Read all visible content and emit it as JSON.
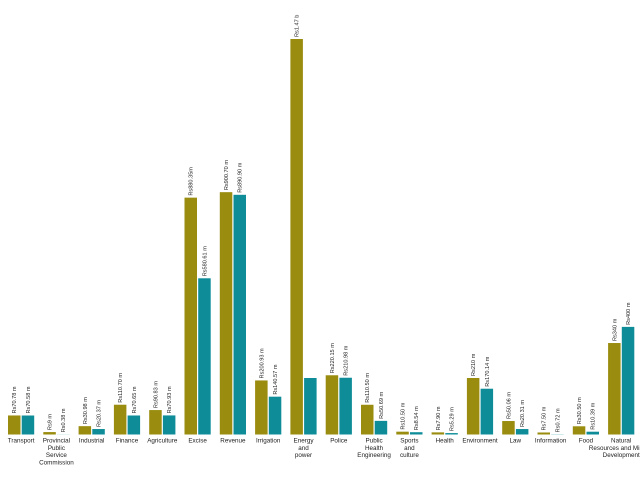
{
  "chart_data": {
    "type": "bar",
    "title": "",
    "xlabel": "",
    "ylabel": "",
    "ylim": [
      0,
      1470
    ],
    "grid": false,
    "legend": "none",
    "colors": {
      "series_a": "#9a8c0e",
      "series_b": "#0e8d99"
    },
    "categories": [
      [
        "Transport"
      ],
      [
        "Provincial",
        "Public",
        "Service",
        "Commission"
      ],
      [
        "Industrial"
      ],
      [
        "Finance"
      ],
      [
        "Agriculture"
      ],
      [
        "Excise"
      ],
      [
        "Revenue"
      ],
      [
        "Irrigation"
      ],
      [
        "Energy",
        "and",
        "power"
      ],
      [
        "Police"
      ],
      [
        "Public",
        "Health",
        "Engineering"
      ],
      [
        "Sports",
        "and",
        "culture"
      ],
      [
        "Health"
      ],
      [
        "Environment"
      ],
      [
        "Law"
      ],
      [
        "Information"
      ],
      [
        "Food"
      ],
      [
        "Natural",
        "Resources and Mineral",
        "Development"
      ]
    ],
    "series": [
      {
        "values": [
          70.78,
          9,
          30.98,
          110.7,
          90.83,
          880.35,
          900.7,
          200.93,
          1470,
          220.15,
          110.5,
          10.5,
          7.9,
          210,
          50.06,
          7.5,
          30.5,
          340
        ],
        "labels": [
          "Rs70.78 m",
          "Rs9 m",
          "Rs30.98 m",
          "Rs110.70 m",
          "Rs90.83 m",
          "Rs880.35m",
          "Rs900.70 m",
          "Rs200.93 m",
          "Rs1.47 b",
          "Rs220.15 m",
          "Rs110.50 m",
          "Rs10.50 m",
          "Rs7.90 m",
          "Rs210 m",
          "Rs50.06 m",
          "Rs7.50 m",
          "Rs30.50 m",
          "Rs340 m"
        ]
      },
      {
        "values": [
          70.58,
          0.38,
          20.37,
          70.65,
          70.93,
          580.61,
          890.9,
          140.57,
          210,
          210.98,
          50.69,
          8.54,
          5.29,
          170.14,
          20.31,
          0.72,
          10.39,
          400
        ],
        "labels": [
          "Rs70.58 m",
          "Rs0.38 m",
          "Rs20.37 m",
          "Rs70.65 m",
          "Rs70.93 m",
          "Rs580.61 m",
          "Rs890.90 m",
          "Rs140.57 m",
          "",
          "Rs210.98 m",
          "Rs50.69 m",
          "Rs8.54 m",
          "Rs5.29 m",
          "Rs170.14 m",
          "Rs20.31 m",
          "Rs0.72 m",
          "Rs10.39 m",
          "Rs400 m"
        ]
      }
    ]
  }
}
